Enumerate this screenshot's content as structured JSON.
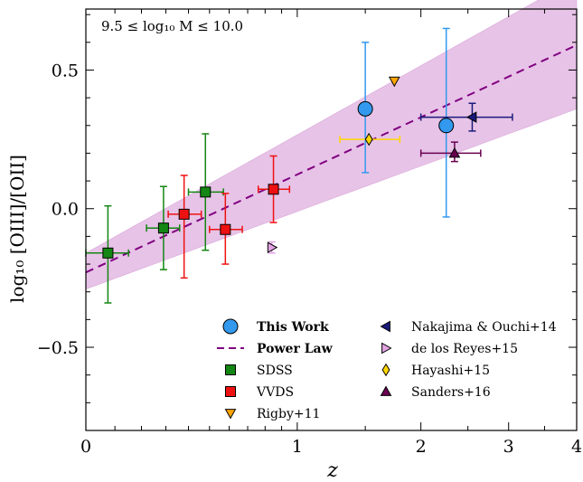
{
  "chart_data": {
    "type": "scatter",
    "xlabel": "z",
    "ylabel": "log₁₀ [OIII]/[OII]",
    "x_scale": "log(1+z)",
    "xlim": [
      0,
      4
    ],
    "ylim": [
      -0.8,
      0.72
    ],
    "x_ticks": [
      0,
      1,
      2,
      3,
      4
    ],
    "y_ticks": [
      -0.5,
      0.0,
      0.5
    ],
    "y_tick_labels": [
      "−0.5",
      "0.0",
      "0.5"
    ],
    "annotation": "9.5 ≤ log₁₀ M ≤ 10.0",
    "legend_position": "lower-right",
    "power_law": {
      "name": "Power Law",
      "color": "#800080",
      "band_color": "#e3b9e3",
      "line_at_z0": -0.23,
      "line_at_z4": 0.59,
      "band_low_z0": -0.29,
      "band_low_z4": 0.36,
      "band_high_z0": -0.16,
      "band_high_z4": 0.83
    },
    "series": [
      {
        "name": "This Work",
        "marker": "circle",
        "color": "#3399ee",
        "bold": true,
        "points": [
          {
            "x": 1.5,
            "y": 0.36,
            "ylo": 0.13,
            "yhi": 0.6
          },
          {
            "x": 2.26,
            "y": 0.3,
            "ylo": -0.03,
            "yhi": 0.65
          }
        ]
      },
      {
        "name": "Power Law",
        "marker": "dashed-line",
        "color": "#800080",
        "bold": true,
        "points": []
      },
      {
        "name": "SDSS",
        "marker": "square",
        "color": "#138613",
        "points": [
          {
            "x": 0.075,
            "y": -0.16,
            "xlo": 0.0,
            "xhi": 0.15,
            "ylo": -0.34,
            "yhi": 0.01
          },
          {
            "x": 0.29,
            "y": -0.07,
            "xlo": 0.22,
            "xhi": 0.36,
            "ylo": -0.22,
            "yhi": 0.08
          },
          {
            "x": 0.48,
            "y": 0.06,
            "xlo": 0.4,
            "xhi": 0.57,
            "ylo": -0.15,
            "yhi": 0.27
          }
        ]
      },
      {
        "name": "VVDS",
        "marker": "square",
        "color": "#ee1111",
        "points": [
          {
            "x": 0.38,
            "y": -0.02,
            "xlo": 0.31,
            "xhi": 0.46,
            "ylo": -0.25,
            "yhi": 0.12
          },
          {
            "x": 0.58,
            "y": -0.075,
            "xlo": 0.5,
            "xhi": 0.67,
            "ylo": -0.2,
            "yhi": 0.055
          },
          {
            "x": 0.85,
            "y": 0.07,
            "xlo": 0.76,
            "xhi": 0.95,
            "ylo": -0.05,
            "yhi": 0.19
          }
        ]
      },
      {
        "name": "Rigby+11",
        "marker": "triangle-down",
        "color": "#ffa500",
        "points": [
          {
            "x": 1.75,
            "y": 0.46
          }
        ]
      },
      {
        "name": "Nakajima & Ouchi+14",
        "marker": "triangle-left",
        "color": "#1a1a7a",
        "points": [
          {
            "x": 2.55,
            "y": 0.33,
            "xlo": 2.0,
            "xhi": 3.05,
            "ylo": 0.28,
            "yhi": 0.38
          }
        ]
      },
      {
        "name": "de los Reyes+15",
        "marker": "triangle-right",
        "color": "#e3a3e3",
        "points": [
          {
            "x": 0.84,
            "y": -0.14,
            "ylo": -0.16,
            "yhi": -0.12
          }
        ]
      },
      {
        "name": "Hayashi+15",
        "marker": "diamond",
        "color": "#ffd700",
        "points": [
          {
            "x": 1.53,
            "y": 0.25,
            "xlo": 1.3,
            "xhi": 1.8
          }
        ]
      },
      {
        "name": "Sanders+16",
        "marker": "triangle-up",
        "color": "#6a0050",
        "points": [
          {
            "x": 2.35,
            "y": 0.2,
            "xlo": 2.0,
            "xhi": 2.65,
            "ylo": 0.17,
            "yhi": 0.24
          }
        ]
      }
    ]
  }
}
